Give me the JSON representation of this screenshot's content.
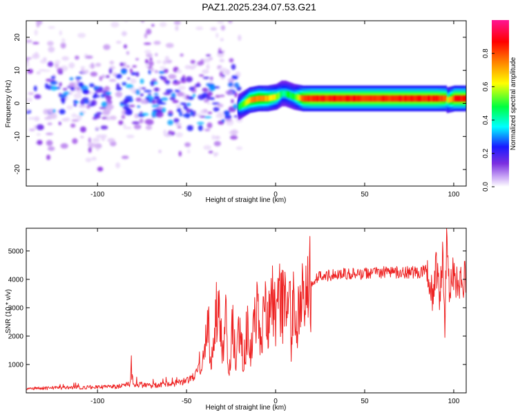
{
  "title": "PAZ1.2025.234.07.53.G21",
  "chart_data": [
    {
      "type": "heatmap",
      "title": "PAZ1.2025.234.07.53.G21",
      "xlabel": "Height of straight line (km)",
      "ylabel": "Frequency (Hz)",
      "xlim": [
        -140,
        107
      ],
      "ylim": [
        -25,
        25
      ],
      "xticks": [
        -100,
        -50,
        0,
        50,
        100
      ],
      "yticks": [
        -20,
        -10,
        0,
        10,
        20
      ],
      "ridge": {
        "description": "Dominant spectral ridge (frequency of maximum amplitude vs height)",
        "x": [
          -21,
          -15,
          -10,
          -5,
          0,
          3,
          5,
          10,
          15,
          20,
          30,
          40,
          50,
          60,
          70,
          80,
          90,
          95,
          96,
          100,
          107
        ],
        "y": [
          -1,
          1,
          1.5,
          1.5,
          2,
          3,
          3,
          2,
          1.5,
          1.5,
          1.5,
          1.5,
          1.5,
          1.5,
          1.5,
          1.5,
          1.5,
          1.5,
          1,
          1.5,
          1.5
        ],
        "amplitude": [
          0.45,
          0.7,
          0.75,
          0.7,
          0.6,
          0.45,
          0.45,
          0.5,
          0.8,
          0.85,
          0.85,
          0.85,
          0.85,
          0.85,
          0.85,
          0.85,
          0.85,
          0.8,
          0.6,
          0.85,
          0.85
        ]
      },
      "scatter_region": {
        "description": "Diffuse low-amplitude spectral energy below about -20 km",
        "xrange": [
          -140,
          -20
        ],
        "yrange": [
          -25,
          25
        ],
        "amplitude_range": [
          0.02,
          0.3
        ]
      },
      "colorbar": {
        "label": "Normalized spectral amplitude",
        "range": [
          0,
          1
        ],
        "ticks": [
          "0.0",
          "0.2",
          "0.4",
          "0.6",
          "0.8"
        ],
        "colors": [
          "#ffffff",
          "#8a2be2",
          "#1a1aff",
          "#00ffff",
          "#00ff00",
          "#ffff00",
          "#ff8000",
          "#ff0000",
          "#ff1493"
        ]
      }
    },
    {
      "type": "line",
      "xlabel": "Height of straight line (km)",
      "ylabel": "SNR (10 * v/v)",
      "xlim": [
        -140,
        107
      ],
      "ylim": [
        0,
        5800
      ],
      "xticks": [
        -100,
        -50,
        0,
        50,
        100
      ],
      "yticks": [
        1000,
        2000,
        3000,
        4000,
        5000
      ],
      "color": "#ee2222",
      "series": [
        {
          "name": "SNR",
          "x": [
            -140,
            -120,
            -100,
            -90,
            -82,
            -81,
            -80,
            -70,
            -60,
            -50,
            -45,
            -40,
            -38,
            -36,
            -34,
            -32,
            -30,
            -28,
            -26,
            -24,
            -22,
            -20,
            -18,
            -16,
            -14,
            -12,
            -10,
            -8,
            -6,
            -4,
            -2,
            0,
            2,
            4,
            6,
            8,
            9,
            10,
            12,
            15,
            18,
            20,
            25,
            30,
            40,
            50,
            60,
            70,
            80,
            85,
            88,
            90,
            92,
            94,
            95,
            96,
            97,
            98,
            100,
            107
          ],
          "y": [
            150,
            180,
            200,
            220,
            300,
            850,
            300,
            250,
            300,
            400,
            600,
            1500,
            2700,
            900,
            2800,
            3500,
            1600,
            2500,
            700,
            2600,
            1200,
            2400,
            1000,
            2300,
            1500,
            2500,
            2800,
            2200,
            3000,
            2500,
            3200,
            2700,
            3300,
            3000,
            3500,
            3800,
            1400,
            3600,
            2400,
            3200,
            3700,
            3900,
            4100,
            4150,
            4200,
            4200,
            4250,
            4250,
            4250,
            4300,
            3500,
            4700,
            3300,
            5100,
            2100,
            5800,
            3800,
            4000,
            4050,
            4000
          ]
        }
      ]
    }
  ]
}
